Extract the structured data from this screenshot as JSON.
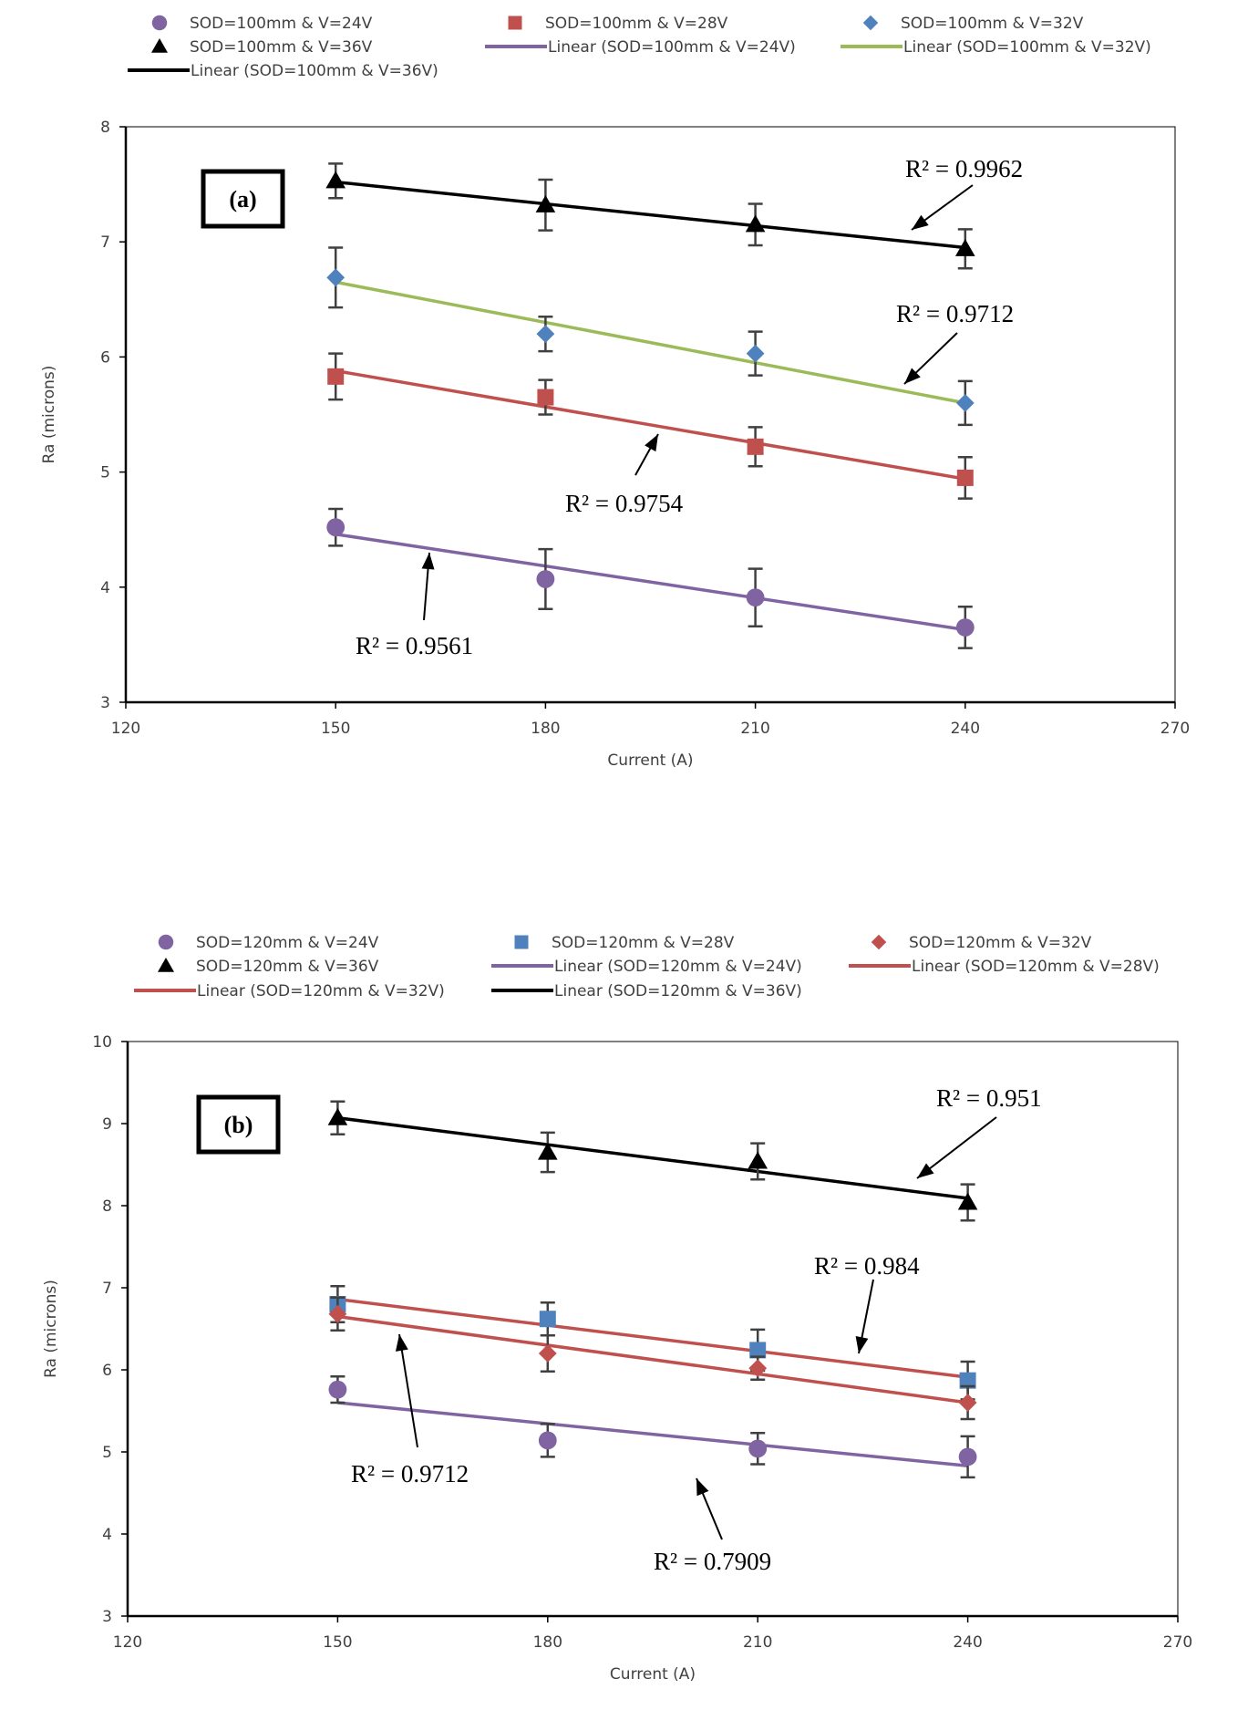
{
  "chart_data": [
    {
      "type": "scatter",
      "panel_label": "(a)",
      "xlabel": "Current (A)",
      "ylabel": "Ra (microns)",
      "xlim": [
        120,
        270
      ],
      "ylim": [
        3,
        8
      ],
      "xticks": [
        120,
        150,
        180,
        210,
        240,
        270
      ],
      "yticks": [
        3,
        4,
        5,
        6,
        7,
        8
      ],
      "grid": false,
      "legend_position": "top",
      "x": [
        150,
        180,
        210,
        240
      ],
      "series": [
        {
          "name": "SOD=100mm & V=24V",
          "marker": "circle",
          "color": "#8064a2",
          "values": [
            4.52,
            4.07,
            3.91,
            3.65
          ],
          "errors": [
            0.16,
            0.26,
            0.25,
            0.18
          ],
          "trend": {
            "name": "Linear (SOD=100mm & V=24V)",
            "color": "#8064a2",
            "start": 4.46,
            "end": 3.63
          },
          "r2": {
            "text": "R² = 0.9561"
          }
        },
        {
          "name": "SOD=100mm & V=28V",
          "marker": "square",
          "color": "#c0504d",
          "values": [
            5.83,
            5.65,
            5.22,
            4.95
          ],
          "errors": [
            0.2,
            0.15,
            0.17,
            0.18
          ],
          "trend": {
            "name": "",
            "color": "#c0504d",
            "start": 5.88,
            "end": 4.94
          },
          "r2": {
            "text": "R² = 0.9754"
          }
        },
        {
          "name": "SOD=100mm & V=32V",
          "marker": "diamond",
          "color": "#4f81bd",
          "values": [
            6.69,
            6.2,
            6.03,
            5.6
          ],
          "errors": [
            0.26,
            0.15,
            0.19,
            0.19
          ],
          "trend": {
            "name": "Linear (SOD=100mm & V=32V)",
            "color": "#9bbb59",
            "start": 6.65,
            "end": 5.6
          },
          "r2": {
            "text": "R² = 0.9712"
          }
        },
        {
          "name": "SOD=100mm & V=36V",
          "marker": "triangle",
          "color": "#000000",
          "values": [
            7.53,
            7.32,
            7.15,
            6.94
          ],
          "errors": [
            0.15,
            0.22,
            0.18,
            0.17
          ],
          "trend": {
            "name": "Linear (SOD=100mm & V=36V)",
            "color": "#000000",
            "start": 7.52,
            "end": 6.95
          },
          "r2": {
            "text": "R² = 0.9962"
          }
        }
      ]
    },
    {
      "type": "scatter",
      "panel_label": "(b)",
      "xlabel": "Current (A)",
      "ylabel": "Ra (microns)",
      "xlim": [
        120,
        270
      ],
      "ylim": [
        3,
        10
      ],
      "xticks": [
        120,
        150,
        180,
        210,
        240,
        270
      ],
      "yticks": [
        3,
        4,
        5,
        6,
        7,
        8,
        9,
        10
      ],
      "grid": false,
      "legend_position": "top",
      "x": [
        150,
        180,
        210,
        240
      ],
      "series": [
        {
          "name": "SOD=120mm & V=24V",
          "marker": "circle",
          "color": "#8064a2",
          "values": [
            5.76,
            5.14,
            5.04,
            4.94
          ],
          "errors": [
            0.16,
            0.2,
            0.19,
            0.25
          ],
          "trend": {
            "name": "Linear (SOD=120mm & V=24V)",
            "color": "#8064a2",
            "start": 5.6,
            "end": 4.83
          },
          "r2": {
            "text": "R² = 0.7909"
          }
        },
        {
          "name": "SOD=120mm & V=28V",
          "marker": "square",
          "color": "#4f81bd",
          "values": [
            6.8,
            6.62,
            6.24,
            5.87
          ],
          "errors": [
            0.22,
            0.2,
            0.25,
            0.23
          ],
          "trend": {
            "name": "Linear (SOD=120mm & V=28V)",
            "color": "#c0504d",
            "start": 6.86,
            "end": 5.91
          },
          "r2": {
            "text": "R² = 0.984"
          }
        },
        {
          "name": "SOD=120mm & V=32V",
          "marker": "diamond",
          "color": "#c0504d",
          "values": [
            6.68,
            6.2,
            6.02,
            5.6
          ],
          "errors": [
            0.2,
            0.22,
            0.14,
            0.2
          ],
          "trend": {
            "name": "Linear (SOD=120mm & V=32V)",
            "color": "#c0504d",
            "start": 6.65,
            "end": 5.6
          },
          "r2": {
            "text": "R² = 0.9712"
          }
        },
        {
          "name": "SOD=120mm & V=36V",
          "marker": "triangle",
          "color": "#000000",
          "values": [
            9.07,
            8.65,
            8.54,
            8.04
          ],
          "errors": [
            0.2,
            0.24,
            0.22,
            0.22
          ],
          "trend": {
            "name": "Linear (SOD=120mm & V=36V)",
            "color": "#000000",
            "start": 9.07,
            "end": 8.09
          },
          "r2": {
            "text": "R² = 0.951"
          }
        }
      ]
    }
  ]
}
